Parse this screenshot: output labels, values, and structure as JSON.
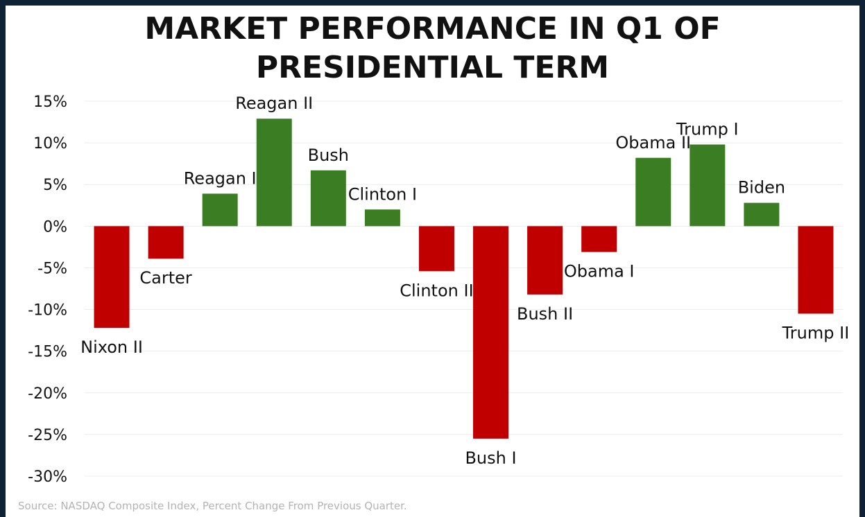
{
  "title_line1": "MARKET PERFORMANCE IN Q1 OF",
  "title_line2": "PRESIDENTIAL TERM",
  "source": "Source: NASDAQ Composite Index, Percent Change From Previous Quarter.",
  "colors": {
    "positive": "#3b7d23",
    "negative": "#c00000",
    "frame": "#0f2233",
    "grid": "#ececec"
  },
  "chart_data": {
    "type": "bar",
    "title": "MARKET PERFORMANCE IN Q1 OF PRESIDENTIAL TERM",
    "categories": [
      "Nixon II",
      "Carter",
      "Reagan I",
      "Reagan II",
      "Bush",
      "Clinton I",
      "Clinton II",
      "Bush I",
      "Bush II",
      "Obama I",
      "Obama II",
      "Trump I",
      "Biden",
      "Trump II"
    ],
    "values": [
      -12.2,
      -3.9,
      3.9,
      12.9,
      6.7,
      2.0,
      -5.4,
      -25.5,
      -8.2,
      -3.1,
      8.2,
      9.8,
      2.8,
      -10.5
    ],
    "y_ticks": [
      "15%",
      "10%",
      "5%",
      "0%",
      "-5%",
      "-10%",
      "-15%",
      "-20%",
      "-25%",
      "-30%"
    ],
    "ylim": [
      -30,
      15
    ],
    "grid": true,
    "legend": "none",
    "xlabel": "",
    "ylabel": ""
  }
}
